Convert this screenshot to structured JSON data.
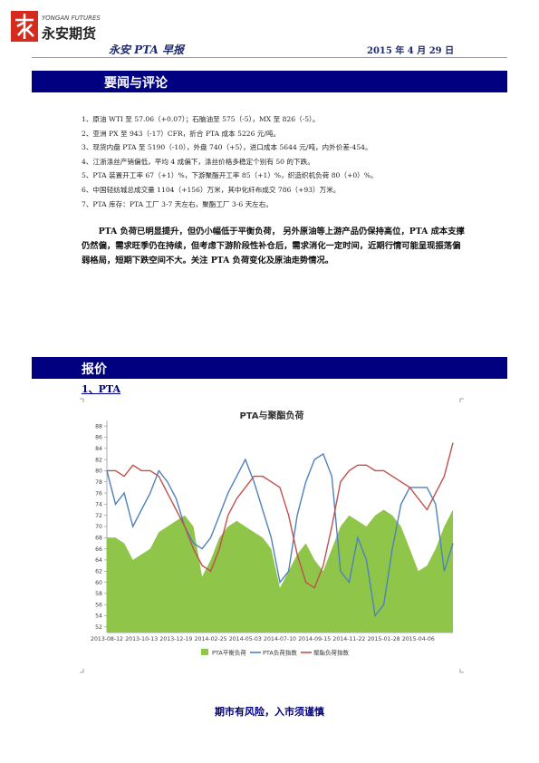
{
  "header": {
    "logo_en": "YONGAN FUTURES",
    "logo_cn": "永安期货",
    "title": "永安 PTA 早报",
    "date": "2015 年 4 月 29 日"
  },
  "section1": {
    "title": "要闻与评论",
    "items": [
      "1、原油 WTI 至 57.06（+0.07）；石脑油至 575（-5），MX 至 826（-5）。",
      "2、亚洲 PX 至 943（-17）CFR，折合 PTA 成本 5226 元/吨。",
      "3、现货内盘 PTA 至 5190（-10），外盘 740（+5），进口成本 5644 元/吨，内外价差-454。",
      "4、江浙涤丝产销偏低，平均 4 成偏下，涤丝价格多稳定个别有 50 的下跌。",
      "5、PTA 装置开工率 67（+1）%，下游聚酯开工率 85（+1）%，织造织机负荷 80（+0）%。",
      "6、中国轻纺城总成交量 1104（+156）万米，其中化纤布成交 786（+93）万米。",
      "7、PTA 库存：PTA 工厂 3-7 天左右，聚酯工厂 3-6 天左右。"
    ],
    "comment": "PTA 负荷已明显提升，但仍小幅低于平衡负荷， 另外原油等上游产品仍保持高位，PTA 成本支撑仍然偏，需求旺季仍在持续，但考虑下游阶段性补仓后，需求消化一定时间，近期行情可能呈现振荡偏弱格局，短期下跌空间不大。关注 PTA 负荷变化及原油走势情况。"
  },
  "section2": {
    "title": "报价",
    "subtitle": "1、PTA"
  },
  "chart_data": {
    "type": "line",
    "title": "PTA与聚酯负荷",
    "categories": [
      "2013-08-12",
      null,
      null,
      null,
      "2013-10-13",
      null,
      null,
      null,
      "2013-12-19",
      null,
      null,
      null,
      "2014-02-25",
      null,
      null,
      null,
      "2014-05-03",
      null,
      null,
      null,
      "2014-07-10",
      null,
      null,
      null,
      "2014-09-15",
      null,
      null,
      null,
      "2014-11-22",
      null,
      null,
      null,
      "2015-01-28",
      null,
      null,
      null,
      "2015-04-06",
      null,
      null,
      null,
      null
    ],
    "series": [
      {
        "name": "PTA平衡负荷",
        "color": "#8fc64a",
        "style": "area",
        "values": [
          68,
          68,
          67,
          64,
          65,
          66,
          69,
          70,
          71,
          72,
          70,
          61,
          64,
          68,
          70,
          71,
          70,
          69,
          68,
          66,
          59,
          62,
          65,
          67,
          64,
          62,
          66,
          70,
          72,
          71,
          70,
          72,
          73,
          72,
          70,
          66,
          62,
          63,
          66,
          70,
          73
        ]
      },
      {
        "name": "PTA负荷指数",
        "color": "#4f81bd",
        "style": "line",
        "values": [
          80,
          74,
          76,
          70,
          73,
          76,
          80,
          78,
          75,
          70,
          67,
          66,
          68,
          72,
          76,
          79,
          82,
          78,
          73,
          68,
          60,
          62,
          72,
          78,
          82,
          83,
          79,
          62,
          60,
          68,
          64,
          54,
          56,
          66,
          74,
          77,
          77,
          77,
          74,
          62,
          67
        ]
      },
      {
        "name": "聚酯负荷指数",
        "color": "#c0504d",
        "style": "line",
        "values": [
          80,
          80,
          79,
          81,
          80,
          80,
          79,
          76,
          73,
          70,
          66,
          63,
          62,
          66,
          72,
          75,
          77,
          79,
          79,
          78,
          77,
          72,
          65,
          60,
          59,
          63,
          70,
          78,
          80,
          81,
          81,
          80,
          80,
          79,
          78,
          77,
          75,
          73,
          76,
          79,
          85
        ]
      }
    ],
    "ylim": [
      51,
      89
    ],
    "yticks": [
      52,
      54,
      56,
      58,
      60,
      62,
      64,
      66,
      68,
      70,
      72,
      74,
      76,
      78,
      80,
      82,
      84,
      86,
      88
    ],
    "grid": false,
    "legend": "bottom"
  },
  "footer": "期市有风险，入市须谨慎"
}
